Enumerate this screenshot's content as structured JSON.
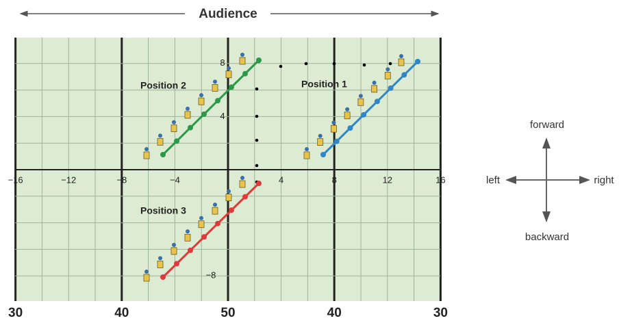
{
  "header": {
    "title": "Audience"
  },
  "field": {
    "x_ticks": [
      "−16",
      "−12",
      "−8",
      "−4",
      "4",
      "8",
      "12",
      "16"
    ],
    "y_ticks": [
      "8",
      "4",
      "−8"
    ],
    "yard_lines": [
      "30",
      "40",
      "50",
      "40",
      "30"
    ],
    "positions": [
      "Position 1",
      "Position 2",
      "Position 3"
    ]
  },
  "compass": {
    "forward": "forward",
    "backward": "backward",
    "left": "left",
    "right": "right"
  }
}
